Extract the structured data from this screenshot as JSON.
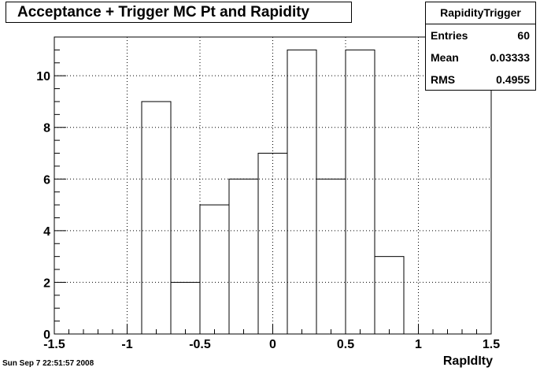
{
  "chart_data": {
    "type": "bar",
    "title": "Acceptance + Trigger MC Pt and Rapidity",
    "xlabel": "RapIdIty",
    "ylabel": "",
    "bins": [
      {
        "low": -0.9,
        "high": -0.7,
        "value": 9
      },
      {
        "low": -0.7,
        "high": -0.5,
        "value": 2
      },
      {
        "low": -0.5,
        "high": -0.3,
        "value": 5
      },
      {
        "low": -0.3,
        "high": -0.1,
        "value": 6
      },
      {
        "low": -0.1,
        "high": 0.1,
        "value": 7
      },
      {
        "low": 0.1,
        "high": 0.3,
        "value": 11
      },
      {
        "low": 0.3,
        "high": 0.5,
        "value": 6
      },
      {
        "low": 0.5,
        "high": 0.7,
        "value": 11
      },
      {
        "low": 0.7,
        "high": 0.9,
        "value": 3
      }
    ],
    "xlim": [
      -1.5,
      1.5
    ],
    "ylim": [
      0,
      11.5
    ],
    "xticks": [
      "-1.5",
      "-1",
      "-0.5",
      "0",
      "0.5",
      "1",
      "1.5"
    ],
    "xtick_values": [
      -1.5,
      -1,
      -0.5,
      0,
      0.5,
      1,
      1.5
    ],
    "yticks": [
      "0",
      "2",
      "4",
      "6",
      "8",
      "10"
    ],
    "ytick_values": [
      0,
      2,
      4,
      6,
      8,
      10
    ],
    "grid": true,
    "stats": {
      "name": "RapidityTrigger",
      "entries_label": "Entries",
      "entries": "60",
      "mean_label": "Mean",
      "mean": "0.03333",
      "rms_label": "RMS",
      "rms": "0.4955"
    }
  },
  "datestamp": "Sun Sep  7 22:51:57 2008"
}
